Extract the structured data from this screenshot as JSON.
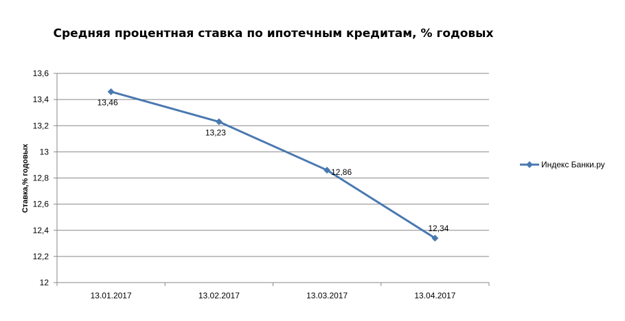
{
  "chart_data": {
    "type": "line",
    "title": "Средняя процентная  ставка по ипотечным кредитам, % годовых",
    "ylabel": "Ставка,%  годовых",
    "xlabel": "",
    "categories": [
      "13.01.2017",
      "13.02.2017",
      "13.03.2017",
      "13.04.2017"
    ],
    "series": [
      {
        "name": "Индекс  Банки.ру",
        "values": [
          13.46,
          13.23,
          12.86,
          12.34
        ],
        "data_labels": [
          "13,46",
          "13,23",
          "12,86",
          "12,34"
        ],
        "color": "#4a78b0",
        "marker": "diamond"
      }
    ],
    "ylim": [
      12,
      13.6
    ],
    "yticks": [
      12,
      12.2,
      12.4,
      12.6,
      12.8,
      13,
      13.2,
      13.4,
      13.6
    ],
    "ytick_labels": [
      "12",
      "12,2",
      "12,4",
      "12,6",
      "12,8",
      "13",
      "13,2",
      "13,4",
      "13,6"
    ],
    "grid": "horizontal",
    "legend_position": "right"
  }
}
